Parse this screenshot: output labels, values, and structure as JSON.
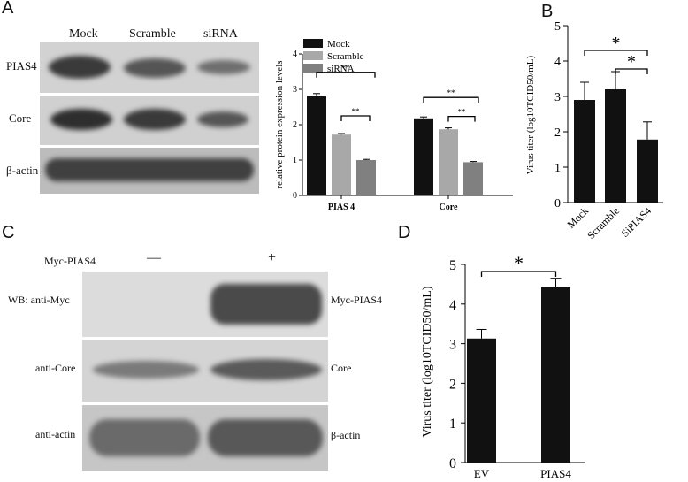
{
  "panels": {
    "A": {
      "letter": "A",
      "lane_labels": [
        "Mock",
        "Scramble",
        "siRNA"
      ],
      "row_labels": [
        "PIAS4",
        "Core",
        "β-actin"
      ]
    },
    "B": {
      "letter": "B"
    },
    "C": {
      "letter": "C",
      "treatment_label": "Myc-PIAS4",
      "treatment_signs": [
        "—",
        "+"
      ],
      "left_labels": [
        "WB: anti-Myc",
        "anti-Core",
        "anti-actin"
      ],
      "right_labels": [
        "Myc-PIAS4",
        "Core",
        "β-actin"
      ]
    },
    "D": {
      "letter": "D"
    }
  },
  "chart_data": [
    {
      "id": "A-bar",
      "type": "bar",
      "ylabel": "relative protein expression levels",
      "categories": [
        "PIAS 4",
        "Core"
      ],
      "ylim": [
        0,
        4
      ],
      "yticks": [
        "0",
        "1",
        "2",
        "3",
        "4"
      ],
      "legend": {
        "position": "top-left",
        "entries": [
          "Mock",
          "Scramble",
          "siRNA"
        ]
      },
      "colors": [
        "#111111",
        "#a8a8a8",
        "#808080"
      ],
      "series": [
        {
          "name": "Mock",
          "values": [
            2.82,
            2.18
          ],
          "errors": [
            0.06,
            0.04
          ]
        },
        {
          "name": "Scramble",
          "values": [
            1.72,
            1.87
          ],
          "errors": [
            0.03,
            0.04
          ]
        },
        {
          "name": "siRNA",
          "values": [
            1.0,
            0.94
          ],
          "errors": [
            0.02,
            0.02
          ]
        }
      ],
      "significance": [
        "**",
        "**",
        "**",
        "**"
      ]
    },
    {
      "id": "B-bar",
      "type": "bar",
      "ylabel": "Virus titer (log10TCID50/mL)",
      "categories": [
        "Mock",
        "Scramble",
        "SiPIAS4"
      ],
      "values": [
        2.9,
        3.2,
        1.78
      ],
      "errors": [
        0.5,
        0.5,
        0.5
      ],
      "ylim": [
        0,
        5
      ],
      "yticks": [
        "0",
        "1",
        "2",
        "3",
        "4",
        "5"
      ],
      "significance": [
        "*",
        "*"
      ]
    },
    {
      "id": "D-bar",
      "type": "bar",
      "ylabel": "Virus titer (log10TCID50/mL)",
      "categories": [
        "EV",
        "PIAS4"
      ],
      "values": [
        3.13,
        4.42
      ],
      "errors": [
        0.23,
        0.23
      ],
      "ylim": [
        0,
        5
      ],
      "yticks": [
        "0",
        "1",
        "2",
        "3",
        "4",
        "5"
      ],
      "significance": [
        "*"
      ]
    }
  ]
}
